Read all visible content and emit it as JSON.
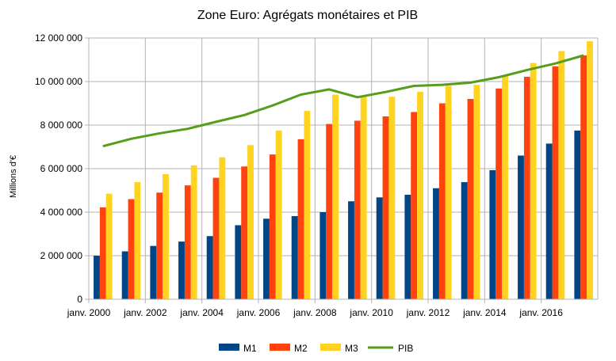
{
  "chart_data": {
    "type": "bar",
    "title": "Zone Euro: Agrégats monétaires et PIB",
    "xlabel": "",
    "ylabel": "Millions d'€",
    "ylim": [
      0,
      12000000
    ],
    "yticks": [
      0,
      2000000,
      4000000,
      6000000,
      8000000,
      10000000,
      12000000
    ],
    "ytick_labels": [
      "0",
      "2 000 000",
      "4 000 000",
      "6 000 000",
      "8 000 000",
      "10 000 000",
      "12 000 000"
    ],
    "categories": [
      "2000",
      "2001",
      "2002",
      "2003",
      "2004",
      "2005",
      "2006",
      "2007",
      "2008",
      "2009",
      "2010",
      "2011",
      "2012",
      "2013",
      "2014",
      "2015",
      "2016",
      "2017"
    ],
    "x_tick_labels": [
      {
        "index": 0,
        "label": "janv. 2000"
      },
      {
        "index": 2,
        "label": "janv. 2002"
      },
      {
        "index": 4,
        "label": "janv. 2004"
      },
      {
        "index": 6,
        "label": "janv. 2006"
      },
      {
        "index": 8,
        "label": "janv. 2008"
      },
      {
        "index": 10,
        "label": "janv. 2010"
      },
      {
        "index": 12,
        "label": "janv. 2012"
      },
      {
        "index": 14,
        "label": "janv. 2014"
      },
      {
        "index": 16,
        "label": "janv. 2016"
      }
    ],
    "grid": true,
    "legend_position": "bottom",
    "series": [
      {
        "name": "M1",
        "type": "bar",
        "color": "#004586",
        "values": [
          2000000,
          2200000,
          2450000,
          2650000,
          2900000,
          3400000,
          3700000,
          3820000,
          4000000,
          4500000,
          4680000,
          4800000,
          5100000,
          5380000,
          5930000,
          6600000,
          7150000,
          7750000
        ]
      },
      {
        "name": "M2",
        "type": "bar",
        "color": "#ff420e",
        "values": [
          4220000,
          4600000,
          4900000,
          5230000,
          5580000,
          6100000,
          6650000,
          7350000,
          8050000,
          8200000,
          8400000,
          8600000,
          9000000,
          9200000,
          9680000,
          10220000,
          10700000,
          11200000
        ]
      },
      {
        "name": "M3",
        "type": "bar",
        "color": "#ffd320",
        "values": [
          4850000,
          5380000,
          5750000,
          6150000,
          6520000,
          7080000,
          7750000,
          8650000,
          9400000,
          9350000,
          9300000,
          9530000,
          9800000,
          9850000,
          10300000,
          10850000,
          11400000,
          11850000
        ]
      },
      {
        "name": "PIB",
        "type": "line",
        "color": "#579d1c",
        "values": [
          7030000,
          7370000,
          7620000,
          7830000,
          8150000,
          8460000,
          8900000,
          9400000,
          9640000,
          9280000,
          9520000,
          9800000,
          9850000,
          9950000,
          10200000,
          10530000,
          10830000,
          11200000
        ]
      }
    ]
  }
}
